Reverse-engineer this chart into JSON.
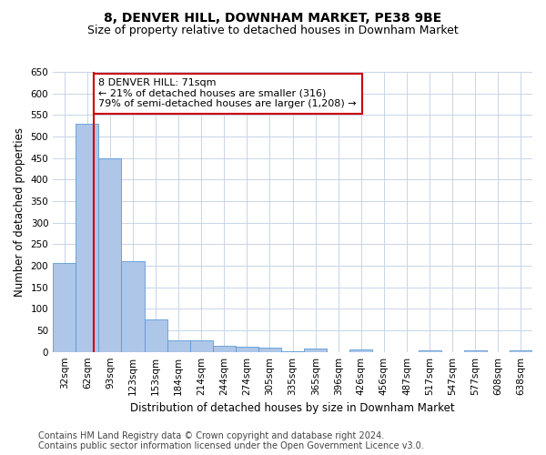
{
  "title": "8, DENVER HILL, DOWNHAM MARKET, PE38 9BE",
  "subtitle": "Size of property relative to detached houses in Downham Market",
  "xlabel": "Distribution of detached houses by size in Downham Market",
  "ylabel": "Number of detached properties",
  "categories": [
    "32sqm",
    "62sqm",
    "93sqm",
    "123sqm",
    "153sqm",
    "184sqm",
    "214sqm",
    "244sqm",
    "274sqm",
    "305sqm",
    "335sqm",
    "365sqm",
    "396sqm",
    "426sqm",
    "456sqm",
    "487sqm",
    "517sqm",
    "547sqm",
    "577sqm",
    "608sqm",
    "638sqm"
  ],
  "values": [
    207,
    530,
    450,
    211,
    75,
    27,
    26,
    15,
    12,
    9,
    2,
    8,
    0,
    5,
    0,
    0,
    4,
    0,
    3,
    0,
    4
  ],
  "bar_color": "#aec6e8",
  "bar_edge_color": "#5b9bd5",
  "property_line_x": 1.3,
  "annotation_line1": "8 DENVER HILL: 71sqm",
  "annotation_line2": "← 21% of detached houses are smaller (316)",
  "annotation_line3": "79% of semi-detached houses are larger (1,208) →",
  "annotation_box_color": "#ffffff",
  "annotation_box_edge": "#cc0000",
  "vline_color": "#cc0000",
  "ylim": [
    0,
    650
  ],
  "yticks": [
    0,
    50,
    100,
    150,
    200,
    250,
    300,
    350,
    400,
    450,
    500,
    550,
    600,
    650
  ],
  "footnote1": "Contains HM Land Registry data © Crown copyright and database right 2024.",
  "footnote2": "Contains public sector information licensed under the Open Government Licence v3.0.",
  "background_color": "#ffffff",
  "grid_color": "#c8d4e8",
  "title_fontsize": 10,
  "subtitle_fontsize": 9,
  "label_fontsize": 8.5,
  "tick_fontsize": 7.5,
  "annotation_fontsize": 8,
  "footnote_fontsize": 7
}
